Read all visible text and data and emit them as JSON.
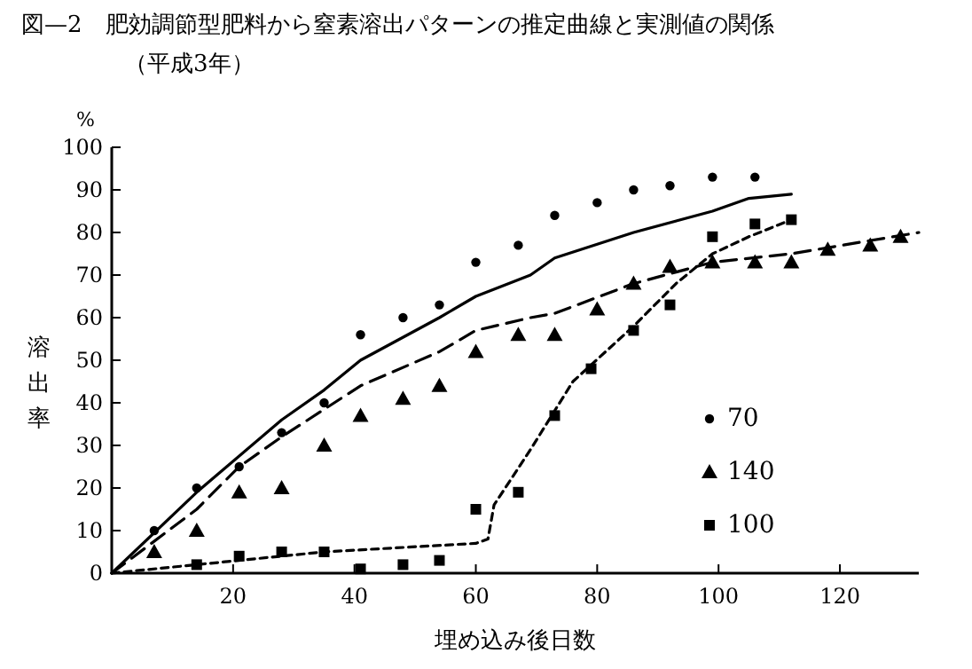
{
  "chart_data": {
    "type": "scatter",
    "title": "図—2　肥効調節型肥料から窒素溶出パターンの推定曲線と実測値の関係",
    "subtitle": "（平成3年）",
    "xlabel": "埋め込み後日数",
    "ylabel": "溶出率",
    "annotations": [
      "%"
    ],
    "xlim": [
      0,
      133
    ],
    "ylim": [
      0,
      100
    ],
    "xticks": [
      20,
      40,
      60,
      80,
      100,
      120
    ],
    "yticks": [
      0,
      10,
      20,
      30,
      40,
      50,
      60,
      70,
      80,
      90,
      100
    ],
    "grid": false,
    "legend": "bottom right",
    "series": [
      {
        "name": "70",
        "type": "scatter",
        "marker": "circle",
        "color": "#000000",
        "x": [
          7,
          14,
          21,
          28,
          35,
          41,
          48,
          54,
          60,
          67,
          73,
          80,
          86,
          92,
          99,
          106
        ],
        "values": [
          10,
          20,
          25,
          33,
          40,
          56,
          60,
          63,
          73,
          77,
          84,
          87,
          90,
          91,
          93,
          93
        ]
      },
      {
        "name": "140",
        "type": "scatter",
        "marker": "triangle",
        "color": "#000000",
        "x": [
          7,
          14,
          21,
          28,
          35,
          41,
          48,
          54,
          60,
          67,
          73,
          80,
          86,
          92,
          99,
          106,
          112,
          118,
          125,
          130
        ],
        "values": [
          5,
          10,
          19,
          20,
          30,
          37,
          41,
          44,
          52,
          56,
          56,
          62,
          68,
          72,
          73,
          73,
          73,
          76,
          77,
          79
        ]
      },
      {
        "name": "100",
        "type": "scatter",
        "marker": "square",
        "color": "#000000",
        "x": [
          14,
          21,
          28,
          35,
          41,
          48,
          54,
          60,
          67,
          73,
          79,
          86,
          92,
          99,
          106,
          112
        ],
        "values": [
          2,
          4,
          5,
          5,
          1,
          2,
          3,
          15,
          19,
          37,
          48,
          57,
          63,
          79,
          82,
          83
        ]
      },
      {
        "type": "line",
        "line_style": "solid",
        "color": "#000000",
        "x": [
          0,
          14,
          28,
          35,
          41,
          54,
          60,
          69,
          73,
          86,
          99,
          105,
          112
        ],
        "values": [
          0,
          19,
          36,
          43,
          50,
          60,
          65,
          70,
          74,
          80,
          85,
          88,
          89
        ]
      },
      {
        "type": "line",
        "line_style": "dashed",
        "color": "#000000",
        "x": [
          0,
          14,
          21,
          28,
          41,
          54,
          60,
          69,
          73,
          86,
          99,
          112,
          133
        ],
        "values": [
          0,
          15,
          25,
          32,
          44,
          52,
          57,
          60,
          61,
          68,
          73,
          75,
          80
        ]
      },
      {
        "type": "line",
        "line_style": "dotted",
        "color": "#000000",
        "x": [
          0,
          14,
          35,
          60,
          62,
          63,
          69,
          76,
          86,
          93,
          99,
          105,
          112
        ],
        "values": [
          0,
          2,
          5,
          7,
          8,
          16,
          29,
          45,
          58,
          68,
          75,
          79,
          83
        ]
      }
    ]
  }
}
